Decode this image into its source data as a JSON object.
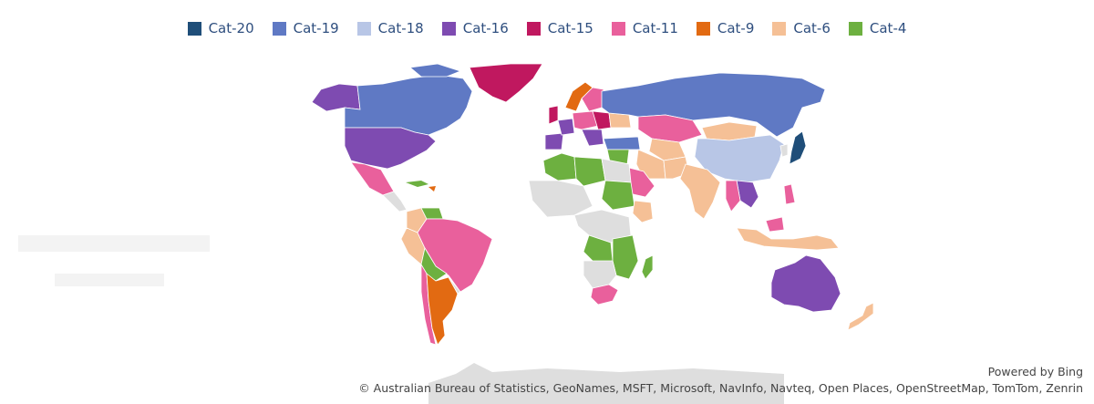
{
  "legend": [
    {
      "label": "Cat-20",
      "color": "#1f4e79"
    },
    {
      "label": "Cat-19",
      "color": "#5f79c4"
    },
    {
      "label": "Cat-18",
      "color": "#b8c6e6"
    },
    {
      "label": "Cat-16",
      "color": "#7e4bb1"
    },
    {
      "label": "Cat-15",
      "color": "#c0185f"
    },
    {
      "label": "Cat-11",
      "color": "#e9609c"
    },
    {
      "label": "Cat-9",
      "color": "#e26a12"
    },
    {
      "label": "Cat-6",
      "color": "#f5c096"
    },
    {
      "label": "Cat-4",
      "color": "#6db040"
    }
  ],
  "map": {
    "no_data_color": "#dedede",
    "regions": [
      {
        "name": "Canada",
        "category": "Cat-19"
      },
      {
        "name": "Alaska",
        "category": "Cat-16"
      },
      {
        "name": "United States",
        "category": "Cat-16"
      },
      {
        "name": "Greenland",
        "category": "Cat-15"
      },
      {
        "name": "Mexico",
        "category": "Cat-11"
      },
      {
        "name": "Brazil",
        "category": "Cat-11"
      },
      {
        "name": "Argentina",
        "category": "Cat-9"
      },
      {
        "name": "Chile",
        "category": "Cat-11"
      },
      {
        "name": "Peru",
        "category": "Cat-6"
      },
      {
        "name": "Colombia",
        "category": "Cat-6"
      },
      {
        "name": "Russia",
        "category": "Cat-19"
      },
      {
        "name": "China",
        "category": "Cat-18"
      },
      {
        "name": "Japan",
        "category": "Cat-20"
      },
      {
        "name": "Australia",
        "category": "Cat-16"
      },
      {
        "name": "India",
        "category": "Cat-6"
      },
      {
        "name": "Kazakhstan",
        "category": "Cat-11"
      },
      {
        "name": "Mongolia",
        "category": "Cat-6"
      },
      {
        "name": "Saudi Arabia",
        "category": "Cat-11"
      },
      {
        "name": "Algeria",
        "category": "Cat-4"
      },
      {
        "name": "South Africa",
        "category": "Cat-11"
      },
      {
        "name": "Madagascar",
        "category": "Cat-4"
      },
      {
        "name": "Norway",
        "category": "Cat-9"
      },
      {
        "name": "Indonesia",
        "category": "Cat-6"
      },
      {
        "name": "New Zealand",
        "category": "Cat-6"
      }
    ]
  },
  "credits": {
    "powered_by": "Powered by Bing",
    "attribution": "© Australian Bureau of Statistics, GeoNames, MSFT, Microsoft, NavInfo, Navteq, Open Places, OpenStreetMap, TomTom, Zenrin"
  }
}
